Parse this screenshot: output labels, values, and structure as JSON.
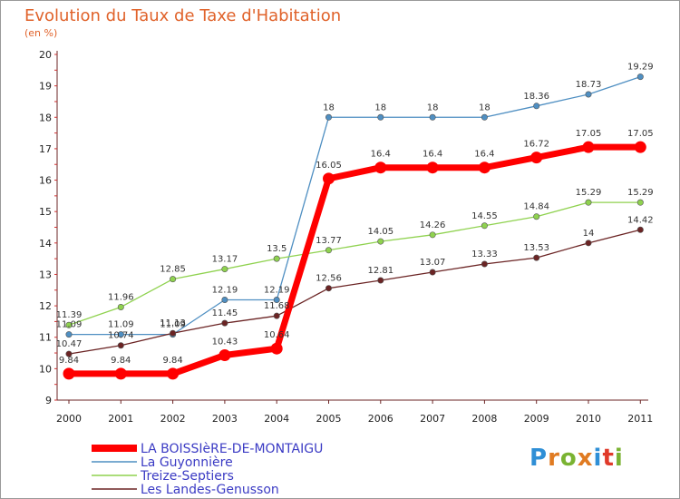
{
  "header": {
    "title": "Evolution du Taux de Taxe d'Habitation",
    "unit": "(en %)"
  },
  "logo": {
    "text": "Proxiti",
    "colors": [
      "#2f8fd6",
      "#e07b22",
      "#7ab332",
      "#e07b22",
      "#2f8fd6",
      "#e03a2a",
      "#7ab332"
    ]
  },
  "chart_data": {
    "type": "line",
    "title": "Evolution du Taux de Taxe d'Habitation",
    "ylabel": "(en %)",
    "xlabel": "",
    "ylim": [
      9,
      20
    ],
    "yticks": [
      9,
      10,
      11,
      12,
      13,
      14,
      15,
      16,
      17,
      18,
      19,
      20
    ],
    "categories": [
      "2000",
      "2001",
      "2002",
      "2003",
      "2004",
      "2005",
      "2006",
      "2007",
      "2008",
      "2009",
      "2010",
      "2011"
    ],
    "grid": false,
    "legend_position": "bottom-left",
    "series": [
      {
        "name": "La Guyonnière",
        "color": "#4f8fc2",
        "style": "thin",
        "values": [
          11.09,
          11.09,
          11.09,
          12.19,
          12.19,
          18,
          18,
          18,
          18,
          18.36,
          18.73,
          19.29
        ],
        "labels": [
          "11.09",
          "11.09",
          "11.09",
          "12.19",
          "12.19",
          "18",
          "18",
          "18",
          "18",
          "18.36",
          "18.73",
          "19.29"
        ]
      },
      {
        "name": "Treize-Septiers",
        "color": "#8fd24f",
        "style": "thin",
        "values": [
          11.39,
          11.96,
          12.85,
          13.17,
          13.5,
          13.77,
          14.05,
          14.26,
          14.55,
          14.84,
          15.29,
          15.29
        ],
        "labels": [
          "11.39",
          "11.96",
          "12.85",
          "13.17",
          "13.5",
          "13.77",
          "14.05",
          "14.26",
          "14.55",
          "14.84",
          "15.29",
          "15.29"
        ]
      },
      {
        "name": "Les Landes-Genusson",
        "color": "#6b2424",
        "style": "thin",
        "values": [
          10.47,
          10.74,
          11.13,
          11.45,
          11.68,
          12.56,
          12.81,
          13.07,
          13.33,
          13.53,
          14,
          14.42
        ],
        "labels": [
          "10.47",
          "10.74",
          "11.13",
          "11.45",
          "11.68",
          "12.56",
          "12.81",
          "13.07",
          "13.33",
          "13.53",
          "14",
          "14.42"
        ]
      },
      {
        "name": "LA BOISSIèRE-DE-MONTAIGU",
        "color": "#ff0000",
        "style": "thick",
        "values": [
          9.84,
          9.84,
          9.84,
          10.43,
          10.64,
          16.05,
          16.4,
          16.4,
          16.4,
          16.72,
          17.05,
          17.05
        ],
        "labels": [
          "9.84",
          "9.84",
          "9.84",
          "10.43",
          "10.64",
          "16.05",
          "16.4",
          "16.4",
          "16.4",
          "16.72",
          "17.05",
          "17.05"
        ]
      }
    ],
    "legend": [
      "LA BOISSIèRE-DE-MONTAIGU",
      "La Guyonnière",
      "Treize-Septiers",
      "Les Landes-Genusson"
    ]
  }
}
